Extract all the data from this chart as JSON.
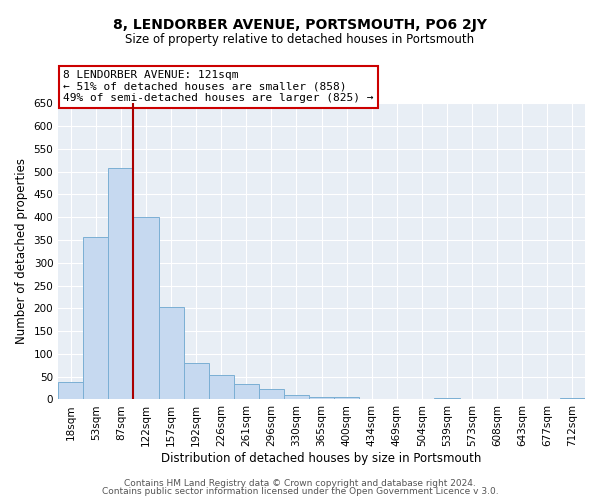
{
  "title": "8, LENDORBER AVENUE, PORTSMOUTH, PO6 2JY",
  "subtitle": "Size of property relative to detached houses in Portsmouth",
  "xlabel": "Distribution of detached houses by size in Portsmouth",
  "ylabel": "Number of detached properties",
  "bar_labels": [
    "18sqm",
    "53sqm",
    "87sqm",
    "122sqm",
    "157sqm",
    "192sqm",
    "226sqm",
    "261sqm",
    "296sqm",
    "330sqm",
    "365sqm",
    "400sqm",
    "434sqm",
    "469sqm",
    "504sqm",
    "539sqm",
    "573sqm",
    "608sqm",
    "643sqm",
    "677sqm",
    "712sqm"
  ],
  "bar_values": [
    38,
    357,
    507,
    401,
    203,
    79,
    54,
    35,
    22,
    10,
    6,
    5,
    0,
    0,
    0,
    4,
    0,
    0,
    0,
    0,
    4
  ],
  "bar_color": "#c6d9f0",
  "bar_edge_color": "#7bafd4",
  "vline_color": "#aa0000",
  "annotation_title": "8 LENDORBER AVENUE: 121sqm",
  "annotation_line1": "← 51% of detached houses are smaller (858)",
  "annotation_line2": "49% of semi-detached houses are larger (825) →",
  "annotation_box_edgecolor": "#cc0000",
  "ylim": [
    0,
    650
  ],
  "yticks": [
    0,
    50,
    100,
    150,
    200,
    250,
    300,
    350,
    400,
    450,
    500,
    550,
    600,
    650
  ],
  "footer1": "Contains HM Land Registry data © Crown copyright and database right 2024.",
  "footer2": "Contains public sector information licensed under the Open Government Licence v 3.0.",
  "bg_color": "#ffffff",
  "plot_bg_color": "#e8eef5",
  "grid_color": "#ffffff",
  "title_fontsize": 10,
  "subtitle_fontsize": 8.5,
  "axis_label_fontsize": 8.5,
  "tick_fontsize": 7.5,
  "footer_fontsize": 6.5,
  "annotation_fontsize": 8
}
